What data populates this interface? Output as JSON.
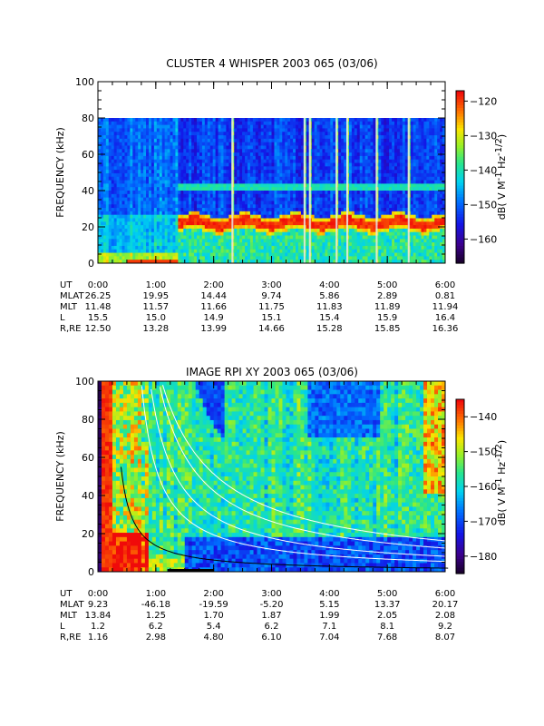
{
  "chart_data": [
    {
      "type": "heatmap",
      "title": "CLUSTER 4 WHISPER 2003 065 (03/06)",
      "ylabel": "FREQUENCY (kHz)",
      "ylim": [
        0,
        100
      ],
      "y_ticks": [
        "0",
        "20",
        "40",
        "60",
        "80",
        "100"
      ],
      "x_ticks": [
        "0:00",
        "1:00",
        "2:00",
        "3:00",
        "4:00",
        "5:00",
        "6:00"
      ],
      "xlim_hours": [
        0,
        6
      ],
      "data_top_khz": 80,
      "colorbar": {
        "label": "dB( V M",
        "sup1": "-1",
        "mid": " Hz",
        "sup2": "-1/2",
        "end": ")",
        "range": [
          -167,
          -117
        ],
        "ticks": [
          -120,
          -130,
          -140,
          -150,
          -160
        ]
      },
      "features": {
        "bright_band_khz": 22,
        "line_band_khz": 42,
        "activity_start_hours": 1.35
      },
      "ephemeris": [
        {
          "label": "UT",
          "values": [
            "0:00",
            "1:00",
            "2:00",
            "3:00",
            "4:00",
            "5:00",
            "6:00"
          ]
        },
        {
          "label": "MLAT",
          "values": [
            "26.25",
            "19.95",
            "14.44",
            "9.74",
            "5.86",
            "2.89",
            "0.81"
          ]
        },
        {
          "label": "MLT",
          "values": [
            "11.48",
            "11.57",
            "11.66",
            "11.75",
            "11.83",
            "11.89",
            "11.94"
          ]
        },
        {
          "label": "L",
          "values": [
            "15.5",
            "15.0",
            "14.9",
            "15.1",
            "15.4",
            "15.9",
            "16.4"
          ]
        },
        {
          "label": "R,RE",
          "values": [
            "12.50",
            "13.28",
            "13.99",
            "14.66",
            "15.28",
            "15.85",
            "16.36"
          ]
        }
      ]
    },
    {
      "type": "heatmap",
      "title": "IMAGE RPI XY 2003 065 (03/06)",
      "ylabel": "FREQUENCY (kHz)",
      "ylim": [
        0,
        100
      ],
      "y_ticks": [
        "0",
        "20",
        "40",
        "60",
        "80",
        "100"
      ],
      "x_ticks": [
        "0:00",
        "1:00",
        "2:00",
        "3:00",
        "4:00",
        "5:00",
        "6:00"
      ],
      "xlim_hours": [
        0,
        6
      ],
      "data_top_khz": 100,
      "colorbar": {
        "label": "dB( V M",
        "sup1": "-1",
        "mid": " Hz",
        "sup2": "-1/2",
        "end": ")",
        "range": [
          -185,
          -135
        ],
        "ticks": [
          -140,
          -150,
          -160,
          -170,
          -180
        ]
      },
      "ephemeris": [
        {
          "label": "UT",
          "values": [
            "0:00",
            "1:00",
            "2:00",
            "3:00",
            "4:00",
            "5:00",
            "6:00"
          ]
        },
        {
          "label": "MLAT",
          "values": [
            "9.23",
            "-46.18",
            "-19.59",
            "-5.20",
            "5.15",
            "13.37",
            "20.17"
          ]
        },
        {
          "label": "MLT",
          "values": [
            "13.84",
            "1.25",
            "1.70",
            "1.87",
            "1.99",
            "2.05",
            "2.08"
          ]
        },
        {
          "label": "L",
          "values": [
            "1.2",
            "6.2",
            "5.4",
            "6.2",
            "7.1",
            "8.1",
            "9.2"
          ]
        },
        {
          "label": "R,RE",
          "values": [
            "1.16",
            "2.98",
            "4.80",
            "6.10",
            "7.04",
            "7.68",
            "8.07"
          ]
        }
      ]
    }
  ]
}
